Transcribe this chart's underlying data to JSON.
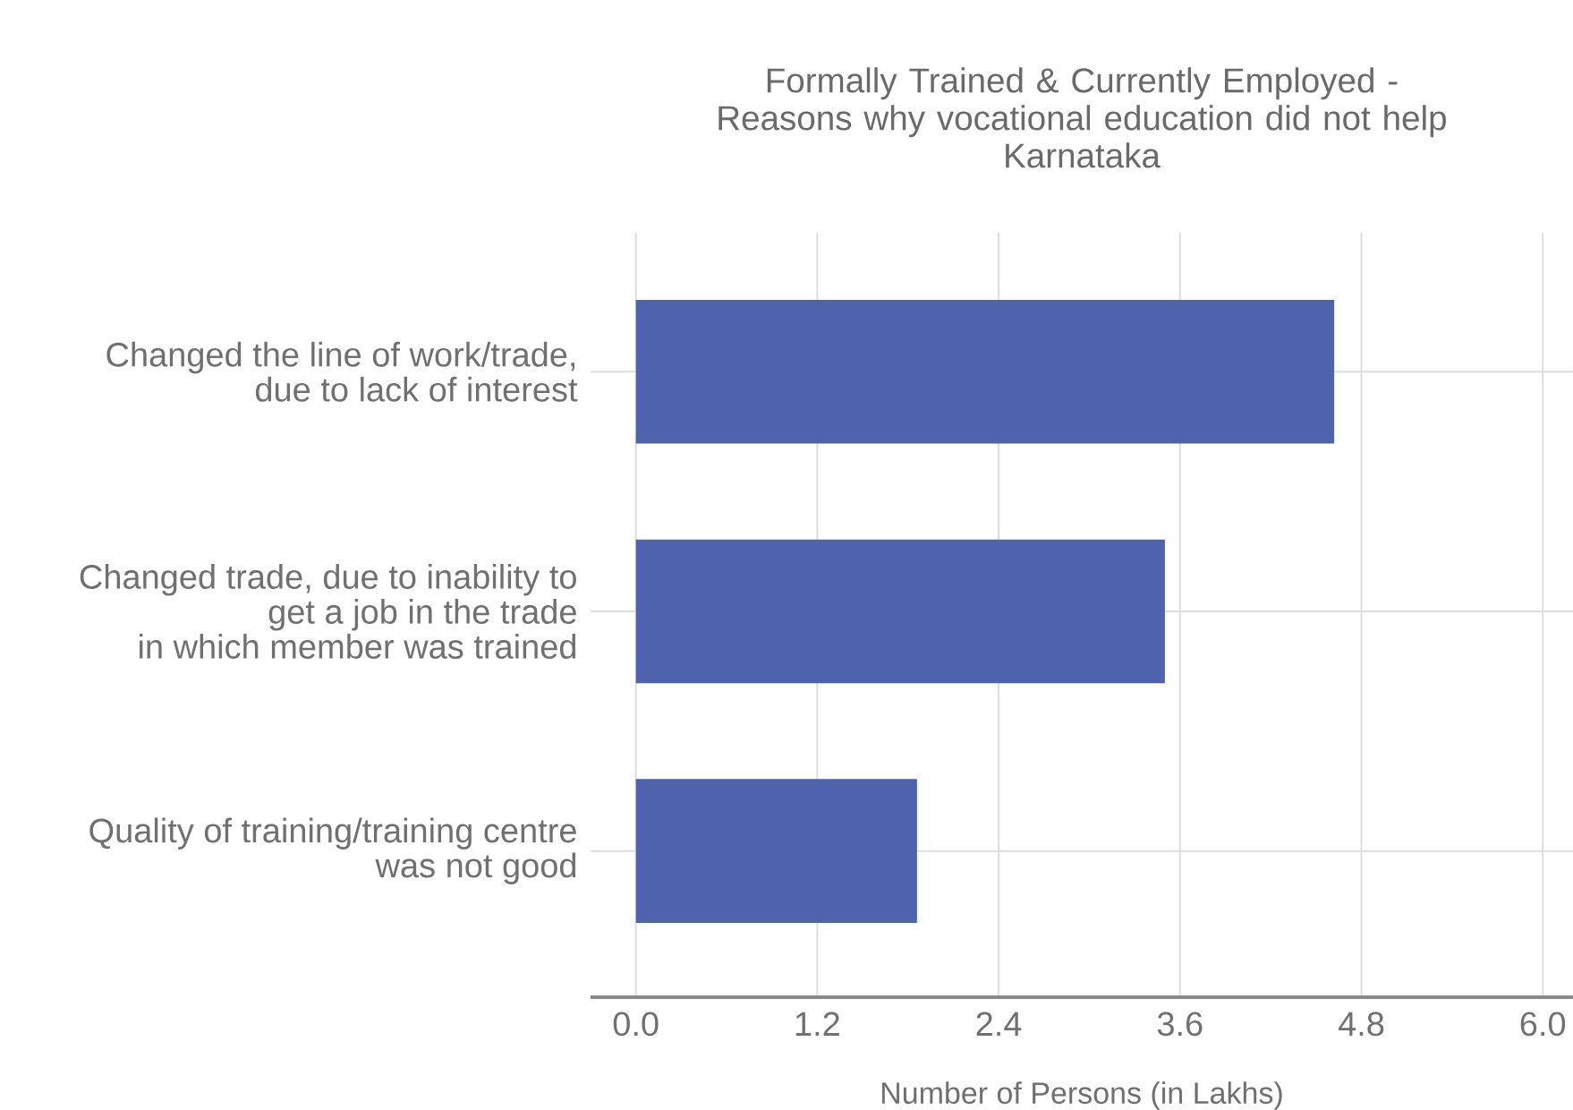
{
  "chart_data": {
    "type": "bar",
    "orientation": "horizontal",
    "title": "Formally Trained & Currently Employed - Reasons why vocational education did not help",
    "subtitle": "Karnataka",
    "xlabel": "Number of Persons (in Lakhs)",
    "categories": [
      "Changed the line of work/trade,\ndue to lack of interest",
      "Changed trade, due to inability to\nget a job in the trade\nin which member was trained",
      "Quality of training/training centre\nwas not good"
    ],
    "values": [
      4.62,
      3.5,
      1.86
    ],
    "color": "#4f62ad",
    "xlim": [
      -0.3,
      6.2
    ],
    "xticks": [
      {
        "value": 0,
        "label": "0.0"
      },
      1.2,
      2.4,
      3.6,
      4.8,
      {
        "value": 6,
        "label": "6.0"
      }
    ],
    "grid": true
  }
}
